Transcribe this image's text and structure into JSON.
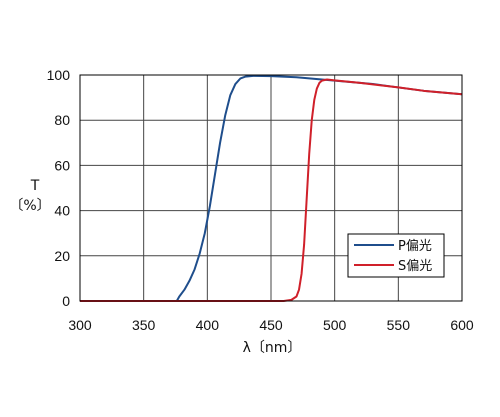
{
  "chart_data": {
    "type": "line",
    "title": "",
    "xlabel": "λ〔nm〕",
    "ylabel_line1": "T",
    "ylabel_line2": "〔%〕",
    "xlim": [
      300,
      600
    ],
    "ylim": [
      0,
      100
    ],
    "xticks": [
      300,
      350,
      400,
      450,
      500,
      550,
      600
    ],
    "yticks": [
      0,
      20,
      40,
      60,
      80,
      100
    ],
    "grid": true,
    "legend_position": "lower-right",
    "series": [
      {
        "name": "P偏光",
        "color": "#1f4e8c",
        "x": [
          300,
          376,
          378,
          382,
          386,
          390,
          394,
          398,
          402,
          406,
          410,
          414,
          418,
          422,
          426,
          430,
          436,
          450,
          470,
          490,
          510,
          530,
          550,
          570,
          600
        ],
        "y": [
          0,
          0,
          2,
          5,
          9,
          14,
          21,
          30,
          42,
          56,
          70,
          82,
          91,
          96,
          98.5,
          99.3,
          99.6,
          99.5,
          99,
          98,
          97,
          96,
          94.5,
          93,
          91.5
        ]
      },
      {
        "name": "S偏光",
        "color": "#d0202a",
        "x": [
          300,
          460,
          466,
          470,
          472,
          474,
          476,
          478,
          480,
          482,
          484,
          486,
          488,
          490,
          494,
          500,
          520,
          550,
          570,
          600
        ],
        "y": [
          0,
          0,
          0.5,
          2,
          5,
          12,
          25,
          45,
          65,
          80,
          89,
          94,
          96.5,
          97.5,
          98,
          97.6,
          96.5,
          94.5,
          93,
          91.5
        ]
      }
    ]
  }
}
